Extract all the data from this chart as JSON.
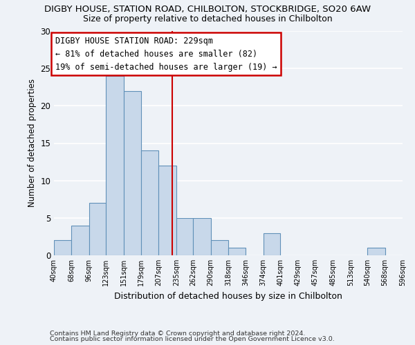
{
  "title": "DIGBY HOUSE, STATION ROAD, CHILBOLTON, STOCKBRIDGE, SO20 6AW",
  "subtitle": "Size of property relative to detached houses in Chilbolton",
  "xlabel": "Distribution of detached houses by size in Chilbolton",
  "ylabel": "Number of detached properties",
  "bar_color": "#c8d8ea",
  "bar_edge_color": "#6090b8",
  "bins": [
    40,
    68,
    96,
    123,
    151,
    179,
    207,
    235,
    262,
    290,
    318,
    346,
    374,
    401,
    429,
    457,
    485,
    513,
    540,
    568,
    596
  ],
  "counts": [
    2,
    4,
    7,
    24,
    22,
    14,
    12,
    5,
    5,
    2,
    1,
    0,
    3,
    0,
    0,
    0,
    0,
    0,
    1,
    0
  ],
  "tick_labels": [
    "40sqm",
    "68sqm",
    "96sqm",
    "123sqm",
    "151sqm",
    "179sqm",
    "207sqm",
    "235sqm",
    "262sqm",
    "290sqm",
    "318sqm",
    "346sqm",
    "374sqm",
    "401sqm",
    "429sqm",
    "457sqm",
    "485sqm",
    "513sqm",
    "540sqm",
    "568sqm",
    "596sqm"
  ],
  "vline_x": 229,
  "vline_color": "#cc0000",
  "ylim": [
    0,
    30
  ],
  "yticks": [
    0,
    5,
    10,
    15,
    20,
    25,
    30
  ],
  "annotation_title": "DIGBY HOUSE STATION ROAD: 229sqm",
  "annotation_line1": "← 81% of detached houses are smaller (82)",
  "annotation_line2": "19% of semi-detached houses are larger (19) →",
  "annotation_box_color": "#ffffff",
  "annotation_box_edge": "#cc0000",
  "footer1": "Contains HM Land Registry data © Crown copyright and database right 2024.",
  "footer2": "Contains public sector information licensed under the Open Government Licence v3.0.",
  "background_color": "#eef2f7",
  "grid_color": "#ffffff"
}
